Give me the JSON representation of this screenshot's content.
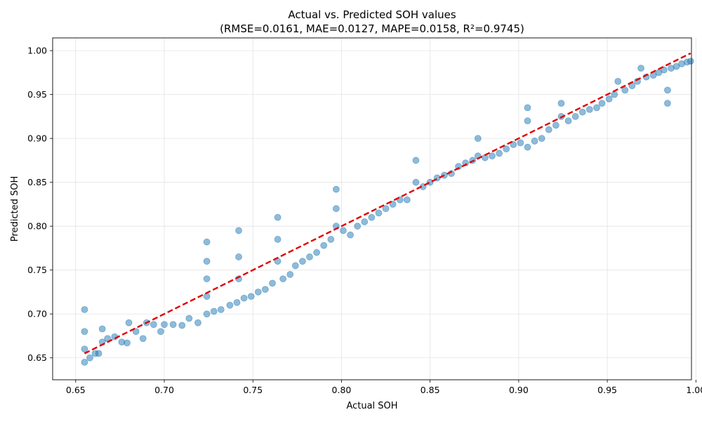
{
  "chart_data": {
    "type": "scatter",
    "title": "Actual vs. Predicted SOH values",
    "subtitle": "(RMSE=0.0161, MAE=0.0127, MAPE=0.0158, R²=0.9745)",
    "xlabel": "Actual SOH",
    "ylabel": "Predicted SOH",
    "xlim": [
      0.637,
      0.9975
    ],
    "ylim": [
      0.625,
      1.0145
    ],
    "grid": true,
    "x_ticks": [
      "0.65",
      "0.70",
      "0.75",
      "0.80",
      "0.85",
      "0.90",
      "0.95",
      "1.00"
    ],
    "y_ticks": [
      "0.65",
      "0.70",
      "0.75",
      "0.80",
      "0.85",
      "0.90",
      "0.95",
      "1.00"
    ],
    "series": [
      {
        "kind": "scatter",
        "color": "#1f77b4",
        "opacity": 0.5,
        "points": [
          [
            0.655,
            0.645
          ],
          [
            0.655,
            0.66
          ],
          [
            0.655,
            0.68
          ],
          [
            0.655,
            0.705
          ],
          [
            0.658,
            0.65
          ],
          [
            0.661,
            0.655
          ],
          [
            0.663,
            0.655
          ],
          [
            0.665,
            0.668
          ],
          [
            0.665,
            0.683
          ],
          [
            0.668,
            0.672
          ],
          [
            0.672,
            0.674
          ],
          [
            0.676,
            0.668
          ],
          [
            0.679,
            0.667
          ],
          [
            0.68,
            0.69
          ],
          [
            0.684,
            0.68
          ],
          [
            0.688,
            0.672
          ],
          [
            0.69,
            0.69
          ],
          [
            0.694,
            0.688
          ],
          [
            0.698,
            0.68
          ],
          [
            0.7,
            0.688
          ],
          [
            0.705,
            0.688
          ],
          [
            0.71,
            0.687
          ],
          [
            0.714,
            0.695
          ],
          [
            0.719,
            0.69
          ],
          [
            0.724,
            0.7
          ],
          [
            0.724,
            0.72
          ],
          [
            0.724,
            0.74
          ],
          [
            0.724,
            0.76
          ],
          [
            0.724,
            0.782
          ],
          [
            0.728,
            0.703
          ],
          [
            0.732,
            0.705
          ],
          [
            0.737,
            0.71
          ],
          [
            0.741,
            0.713
          ],
          [
            0.742,
            0.74
          ],
          [
            0.742,
            0.765
          ],
          [
            0.742,
            0.795
          ],
          [
            0.745,
            0.718
          ],
          [
            0.749,
            0.72
          ],
          [
            0.753,
            0.725
          ],
          [
            0.757,
            0.728
          ],
          [
            0.761,
            0.735
          ],
          [
            0.764,
            0.76
          ],
          [
            0.764,
            0.785
          ],
          [
            0.764,
            0.81
          ],
          [
            0.767,
            0.74
          ],
          [
            0.771,
            0.745
          ],
          [
            0.774,
            0.755
          ],
          [
            0.778,
            0.76
          ],
          [
            0.782,
            0.765
          ],
          [
            0.786,
            0.77
          ],
          [
            0.79,
            0.778
          ],
          [
            0.794,
            0.785
          ],
          [
            0.797,
            0.8
          ],
          [
            0.797,
            0.82
          ],
          [
            0.797,
            0.842
          ],
          [
            0.801,
            0.795
          ],
          [
            0.805,
            0.79
          ],
          [
            0.809,
            0.8
          ],
          [
            0.813,
            0.805
          ],
          [
            0.817,
            0.81
          ],
          [
            0.821,
            0.815
          ],
          [
            0.825,
            0.82
          ],
          [
            0.829,
            0.825
          ],
          [
            0.833,
            0.83
          ],
          [
            0.837,
            0.83
          ],
          [
            0.842,
            0.85
          ],
          [
            0.842,
            0.875
          ],
          [
            0.846,
            0.845
          ],
          [
            0.85,
            0.85
          ],
          [
            0.854,
            0.855
          ],
          [
            0.858,
            0.858
          ],
          [
            0.862,
            0.86
          ],
          [
            0.866,
            0.868
          ],
          [
            0.87,
            0.872
          ],
          [
            0.874,
            0.875
          ],
          [
            0.877,
            0.88
          ],
          [
            0.877,
            0.9
          ],
          [
            0.881,
            0.878
          ],
          [
            0.885,
            0.88
          ],
          [
            0.889,
            0.883
          ],
          [
            0.893,
            0.888
          ],
          [
            0.897,
            0.893
          ],
          [
            0.901,
            0.895
          ],
          [
            0.905,
            0.89
          ],
          [
            0.905,
            0.92
          ],
          [
            0.905,
            0.935
          ],
          [
            0.909,
            0.897
          ],
          [
            0.913,
            0.9
          ],
          [
            0.917,
            0.91
          ],
          [
            0.921,
            0.915
          ],
          [
            0.924,
            0.925
          ],
          [
            0.924,
            0.94
          ],
          [
            0.928,
            0.92
          ],
          [
            0.932,
            0.925
          ],
          [
            0.936,
            0.93
          ],
          [
            0.94,
            0.933
          ],
          [
            0.944,
            0.935
          ],
          [
            0.947,
            0.94
          ],
          [
            0.951,
            0.945
          ],
          [
            0.954,
            0.95
          ],
          [
            0.956,
            0.965
          ],
          [
            0.96,
            0.955
          ],
          [
            0.964,
            0.96
          ],
          [
            0.967,
            0.965
          ],
          [
            0.969,
            0.98
          ],
          [
            0.972,
            0.97
          ],
          [
            0.976,
            0.972
          ],
          [
            0.979,
            0.975
          ],
          [
            0.982,
            0.978
          ],
          [
            0.984,
            0.94
          ],
          [
            0.984,
            0.955
          ],
          [
            0.986,
            0.98
          ],
          [
            0.989,
            0.982
          ],
          [
            0.992,
            0.985
          ],
          [
            0.995,
            0.987
          ],
          [
            0.997,
            0.988
          ]
        ]
      },
      {
        "kind": "line",
        "style": "dashed",
        "color": "#e00000",
        "points": [
          [
            0.655,
            0.655
          ],
          [
            0.997,
            0.997
          ]
        ]
      }
    ]
  }
}
